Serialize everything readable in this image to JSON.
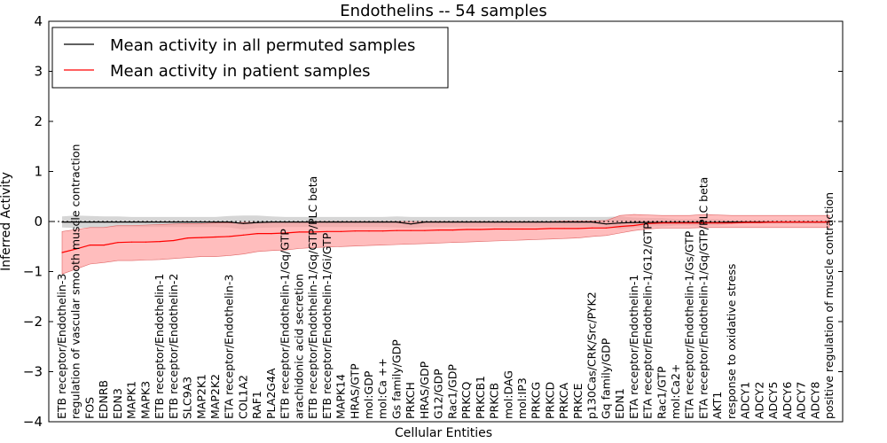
{
  "chart_data": {
    "type": "line",
    "title": "Endothelins -- 54 samples",
    "xlabel": "Cellular Entities",
    "ylabel": "Inferred Activity",
    "ylim": [
      -4,
      4
    ],
    "yticks": [
      4,
      3,
      2,
      1,
      0,
      -1,
      -2,
      -3,
      -4
    ],
    "ytick_labels": [
      "4",
      "3",
      "2",
      "1",
      "0",
      "−1",
      "−2",
      "−3",
      "−4"
    ],
    "grid": false,
    "legend_position": "top-left",
    "categories": [
      "ETB receptor/Endothelin-3",
      "regulation of vascular smooth muscle contraction",
      "FOS",
      "EDNRB",
      "EDN3",
      "MAPK1",
      "MAPK3",
      "ETB receptor/Endothelin-1",
      "ETB receptor/Endothelin-2",
      "SLC9A3",
      "MAP2K1",
      "MAP2K2",
      "ETA receptor/Endothelin-3",
      "COL1A2",
      "RAF1",
      "PLA2G4A",
      "ETB receptor/Endothelin-1/Gq/GTP",
      "arachidonic acid secretion",
      "ETB receptor/Endothelin-1/Gq/GTP/PLC beta",
      "ETB receptor/Endothelin-1/Gi/GTP",
      "MAPK14",
      "HRAS/GTP",
      "mol:GDP",
      "mol:Ca ++",
      "Gs family/GDP",
      "PRKCH",
      "HRAS/GDP",
      "G12/GDP",
      "Rac1/GDP",
      "PRKCQ",
      "PRKCB1",
      "PRKCB",
      "mol:DAG",
      "mol:IP3",
      "PRKCG",
      "PRKCD",
      "PRKCA",
      "PRKCE",
      "p130Cas/CRK/Src/PYK2",
      "Gq family/GDP",
      "EDN1",
      "ETA receptor/Endothelin-1",
      "ETA receptor/Endothelin-1/G12/GTP",
      "Rac1/GTP",
      "mol:Ca2+",
      "ETA receptor/Endothelin-1/Gs/GTP",
      "ETA receptor/Endothelin-1/Gq/GTP/PLC beta",
      "AKT1",
      "response to oxidative stress",
      "ADCY1",
      "ADCY2",
      "ADCY5",
      "ADCY6",
      "ADCY7",
      "ADCY8",
      "positive regulation of muscle contraction"
    ],
    "series": [
      {
        "name": "Mean activity in all permuted samples",
        "color": "#000000",
        "values": [
          -0.01,
          -0.01,
          -0.01,
          -0.01,
          -0.01,
          -0.01,
          -0.01,
          -0.01,
          -0.01,
          -0.01,
          -0.01,
          -0.01,
          -0.01,
          -0.04,
          -0.02,
          -0.01,
          -0.01,
          -0.01,
          -0.01,
          -0.01,
          -0.01,
          -0.01,
          -0.01,
          -0.01,
          -0.01,
          -0.05,
          -0.01,
          -0.01,
          -0.01,
          -0.01,
          -0.01,
          -0.01,
          -0.01,
          -0.01,
          -0.01,
          -0.01,
          -0.01,
          -0.01,
          -0.01,
          -0.05,
          -0.03,
          -0.02,
          -0.02,
          -0.02,
          -0.02,
          -0.02,
          -0.02,
          -0.02,
          -0.01,
          -0.01,
          -0.01,
          -0.01,
          -0.01,
          -0.01,
          -0.01,
          -0.01
        ],
        "lower": [
          -0.12,
          -0.13,
          -0.12,
          -0.12,
          -0.11,
          -0.11,
          -0.11,
          -0.11,
          -0.11,
          -0.11,
          -0.11,
          -0.11,
          -0.12,
          -0.16,
          -0.13,
          -0.12,
          -0.11,
          -0.11,
          -0.11,
          -0.11,
          -0.11,
          -0.11,
          -0.11,
          -0.11,
          -0.12,
          -0.13,
          -0.11,
          -0.11,
          -0.11,
          -0.11,
          -0.11,
          -0.11,
          -0.11,
          -0.11,
          -0.11,
          -0.11,
          -0.11,
          -0.11,
          -0.11,
          -0.12,
          -0.15,
          -0.12,
          -0.1,
          -0.1,
          -0.08,
          -0.08,
          -0.08,
          -0.08,
          -0.05,
          -0.04,
          -0.04,
          -0.04,
          -0.04,
          -0.04,
          -0.04,
          -0.04
        ],
        "upper": [
          0.1,
          0.12,
          0.11,
          0.1,
          0.1,
          0.09,
          0.09,
          0.09,
          0.09,
          0.09,
          0.09,
          0.09,
          0.11,
          0.12,
          0.12,
          0.1,
          0.09,
          0.09,
          0.09,
          0.09,
          0.09,
          0.09,
          0.09,
          0.09,
          0.1,
          0.09,
          0.09,
          0.09,
          0.09,
          0.09,
          0.09,
          0.09,
          0.09,
          0.09,
          0.09,
          0.09,
          0.09,
          0.09,
          0.09,
          0.09,
          0.1,
          0.08,
          0.07,
          0.07,
          0.05,
          0.05,
          0.05,
          0.05,
          0.03,
          0.03,
          0.03,
          0.03,
          0.03,
          0.03,
          0.03,
          0.03
        ]
      },
      {
        "name": "Mean activity in patient samples",
        "color": "#ff0000",
        "fill": "#ff9999",
        "values": [
          -0.62,
          -0.55,
          -0.47,
          -0.47,
          -0.42,
          -0.41,
          -0.41,
          -0.4,
          -0.38,
          -0.33,
          -0.32,
          -0.31,
          -0.3,
          -0.27,
          -0.24,
          -0.24,
          -0.23,
          -0.21,
          -0.21,
          -0.2,
          -0.2,
          -0.19,
          -0.19,
          -0.19,
          -0.18,
          -0.18,
          -0.18,
          -0.17,
          -0.17,
          -0.16,
          -0.16,
          -0.15,
          -0.15,
          -0.15,
          -0.15,
          -0.14,
          -0.14,
          -0.14,
          -0.13,
          -0.13,
          -0.1,
          -0.08,
          -0.04,
          -0.03,
          -0.03,
          -0.03,
          -0.03,
          -0.03,
          -0.03,
          -0.02,
          -0.02,
          -0.01,
          -0.01,
          -0.01,
          -0.01,
          -0.01
        ],
        "lower": [
          -1.05,
          -0.95,
          -0.85,
          -0.82,
          -0.78,
          -0.78,
          -0.77,
          -0.76,
          -0.74,
          -0.72,
          -0.7,
          -0.7,
          -0.68,
          -0.65,
          -0.6,
          -0.58,
          -0.57,
          -0.54,
          -0.52,
          -0.51,
          -0.5,
          -0.49,
          -0.48,
          -0.47,
          -0.46,
          -0.45,
          -0.44,
          -0.43,
          -0.42,
          -0.41,
          -0.4,
          -0.39,
          -0.38,
          -0.37,
          -0.36,
          -0.35,
          -0.34,
          -0.33,
          -0.3,
          -0.28,
          -0.23,
          -0.18,
          -0.15,
          -0.13,
          -0.13,
          -0.13,
          -0.12,
          -0.12,
          -0.12,
          -0.12,
          -0.12,
          -0.12,
          -0.12,
          -0.12,
          -0.12,
          -0.12
        ],
        "upper": [
          -0.2,
          -0.16,
          -0.12,
          -0.12,
          -0.08,
          -0.08,
          -0.07,
          -0.06,
          -0.05,
          -0.04,
          -0.04,
          -0.03,
          -0.03,
          -0.02,
          -0.02,
          -0.01,
          -0.01,
          -0.01,
          0.0,
          0.0,
          0.0,
          0.0,
          0.0,
          0.0,
          0.0,
          0.0,
          0.0,
          0.0,
          0.0,
          0.0,
          0.0,
          0.0,
          0.0,
          0.0,
          0.0,
          0.0,
          0.01,
          0.01,
          0.01,
          0.02,
          0.12,
          0.14,
          0.13,
          0.12,
          0.12,
          0.12,
          0.14,
          0.13,
          0.12,
          0.12,
          0.12,
          0.12,
          0.12,
          0.12,
          0.12,
          0.12
        ]
      }
    ]
  }
}
